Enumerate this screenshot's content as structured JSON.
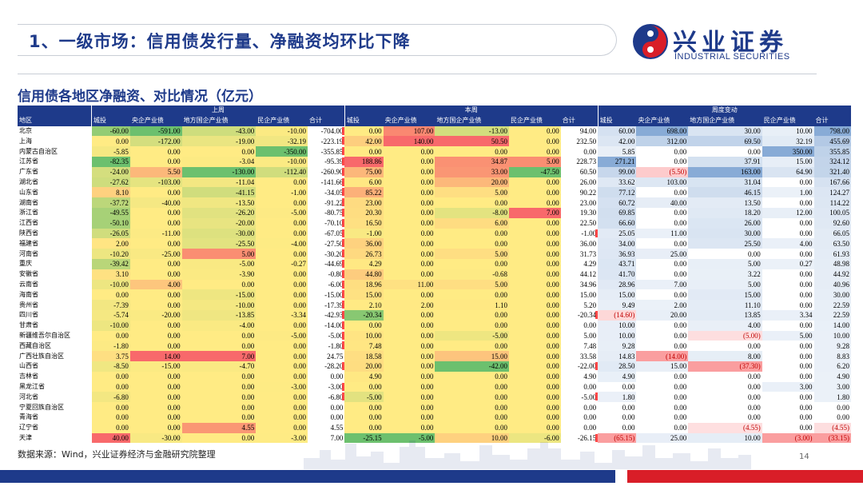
{
  "title": "1、一级市场：信用债发行量、净融资均环比下降",
  "logo": {
    "cn": "兴业证券",
    "en": "INDUSTRIAL SECURITIES"
  },
  "subtitle": "信用债各地区净融资、对比情况（亿元）",
  "groups": [
    "上周",
    "本周",
    "周度变动"
  ],
  "region_header": "地区",
  "columns": [
    "城投",
    "央企产业债",
    "地方国企产业债",
    "民企产业债",
    "合计"
  ],
  "rows": [
    {
      "region": "北京",
      "last": [
        "-60.00",
        "-591.00",
        "-43.00",
        "-10.00",
        "-704.00"
      ],
      "curr": [
        "0.00",
        "107.00",
        "-13.00",
        "0.00",
        "94.00"
      ],
      "chg": [
        "60.00",
        "698.00",
        "30.00",
        "10.00",
        "798.00"
      ]
    },
    {
      "region": "上海",
      "last": [
        "0.00",
        "-172.00",
        "-19.00",
        "-32.19",
        "-223.19"
      ],
      "curr": [
        "42.00",
        "140.00",
        "50.50",
        "0.00",
        "232.50"
      ],
      "chg": [
        "42.00",
        "312.00",
        "69.50",
        "32.19",
        "455.69"
      ]
    },
    {
      "region": "内蒙古自治区",
      "last": [
        "-5.85",
        "0.00",
        "0.00",
        "-350.00",
        "-355.85"
      ],
      "curr": [
        "0.00",
        "0.00",
        "0.00",
        "0.00",
        "0.00"
      ],
      "chg": [
        "5.85",
        "0.00",
        "0.00",
        "350.00",
        "355.85"
      ]
    },
    {
      "region": "江苏省",
      "last": [
        "-82.35",
        "0.00",
        "-3.04",
        "-10.00",
        "-95.39"
      ],
      "curr": [
        "188.86",
        "0.00",
        "34.87",
        "5.00",
        "228.73"
      ],
      "chg": [
        "271.21",
        "0.00",
        "37.91",
        "15.00",
        "324.12"
      ]
    },
    {
      "region": "广东省",
      "last": [
        "-24.00",
        "5.50",
        "-130.00",
        "-112.40",
        "-260.90"
      ],
      "curr": [
        "75.00",
        "0.00",
        "33.00",
        "-47.50",
        "60.50"
      ],
      "chg": [
        "99.00",
        "(5.50)",
        "163.00",
        "64.90",
        "321.40"
      ]
    },
    {
      "region": "湖北省",
      "last": [
        "-27.62",
        "-103.00",
        "-11.04",
        "0.00",
        "-141.66"
      ],
      "curr": [
        "6.00",
        "0.00",
        "20.00",
        "0.00",
        "26.00"
      ],
      "chg": [
        "33.62",
        "103.00",
        "31.04",
        "0.00",
        "167.66"
      ]
    },
    {
      "region": "山东省",
      "last": [
        "8.10",
        "0.00",
        "-41.15",
        "-1.00",
        "-34.05"
      ],
      "curr": [
        "85.22",
        "0.00",
        "5.00",
        "0.00",
        "90.22"
      ],
      "chg": [
        "77.12",
        "0.00",
        "46.15",
        "1.00",
        "124.27"
      ]
    },
    {
      "region": "湖南省",
      "last": [
        "-37.72",
        "-40.00",
        "-13.50",
        "0.00",
        "-91.22"
      ],
      "curr": [
        "23.00",
        "0.00",
        "0.00",
        "0.00",
        "23.00"
      ],
      "chg": [
        "60.72",
        "40.00",
        "13.50",
        "0.00",
        "114.22"
      ]
    },
    {
      "region": "浙江省",
      "last": [
        "-49.55",
        "0.00",
        "-26.20",
        "-5.00",
        "-80.75"
      ],
      "curr": [
        "20.30",
        "0.00",
        "-8.00",
        "7.00",
        "19.30"
      ],
      "chg": [
        "69.85",
        "0.00",
        "18.20",
        "12.00",
        "100.05"
      ]
    },
    {
      "region": "江西省",
      "last": [
        "-50.10",
        "0.00",
        "-20.00",
        "0.00",
        "-70.10"
      ],
      "curr": [
        "16.50",
        "0.00",
        "6.00",
        "0.00",
        "22.50"
      ],
      "chg": [
        "66.60",
        "0.00",
        "26.00",
        "0.00",
        "92.60"
      ]
    },
    {
      "region": "陕西省",
      "last": [
        "-26.05",
        "-11.00",
        "-30.00",
        "0.00",
        "-67.05"
      ],
      "curr": [
        "-1.00",
        "0.00",
        "0.00",
        "0.00",
        "-1.00"
      ],
      "chg": [
        "25.05",
        "11.00",
        "30.00",
        "0.00",
        "66.05"
      ]
    },
    {
      "region": "福建省",
      "last": [
        "2.00",
        "0.00",
        "-25.50",
        "-4.00",
        "-27.50"
      ],
      "curr": [
        "36.00",
        "0.00",
        "0.00",
        "0.00",
        "36.00"
      ],
      "chg": [
        "34.00",
        "0.00",
        "25.50",
        "4.00",
        "63.50"
      ]
    },
    {
      "region": "河南省",
      "last": [
        "-10.20",
        "-25.00",
        "5.00",
        "0.00",
        "-30.20"
      ],
      "curr": [
        "26.73",
        "0.00",
        "5.00",
        "0.00",
        "31.73"
      ],
      "chg": [
        "36.93",
        "25.00",
        "0.00",
        "0.00",
        "61.93"
      ]
    },
    {
      "region": "重庆",
      "last": [
        "-39.42",
        "0.00",
        "-5.00",
        "-0.27",
        "-44.69"
      ],
      "curr": [
        "4.29",
        "0.00",
        "0.00",
        "0.00",
        "4.29"
      ],
      "chg": [
        "43.71",
        "0.00",
        "5.00",
        "0.27",
        "48.98"
      ]
    },
    {
      "region": "安徽省",
      "last": [
        "3.10",
        "0.00",
        "-3.90",
        "0.00",
        "-0.80"
      ],
      "curr": [
        "44.80",
        "0.00",
        "-0.68",
        "0.00",
        "44.12"
      ],
      "chg": [
        "41.70",
        "0.00",
        "3.22",
        "0.00",
        "44.92"
      ]
    },
    {
      "region": "云南省",
      "last": [
        "-10.00",
        "4.00",
        "0.00",
        "0.00",
        "-6.00"
      ],
      "curr": [
        "18.96",
        "11.00",
        "5.00",
        "0.00",
        "34.96"
      ],
      "chg": [
        "28.96",
        "7.00",
        "5.00",
        "0.00",
        "40.96"
      ]
    },
    {
      "region": "海南省",
      "last": [
        "0.00",
        "0.00",
        "-15.00",
        "0.00",
        "-15.00"
      ],
      "curr": [
        "15.00",
        "0.00",
        "0.00",
        "0.00",
        "15.00"
      ],
      "chg": [
        "15.00",
        "0.00",
        "15.00",
        "0.00",
        "30.00"
      ]
    },
    {
      "region": "贵州省",
      "last": [
        "-7.39",
        "0.00",
        "-10.00",
        "0.00",
        "-17.39"
      ],
      "curr": [
        "2.10",
        "2.00",
        "1.10",
        "0.00",
        "5.20"
      ],
      "chg": [
        "9.49",
        "2.00",
        "11.10",
        "0.00",
        "22.59"
      ]
    },
    {
      "region": "四川省",
      "last": [
        "-5.74",
        "-20.00",
        "-13.85",
        "-3.34",
        "-42.93"
      ],
      "curr": [
        "-20.34",
        "0.00",
        "0.00",
        "0.00",
        "-20.34"
      ],
      "chg": [
        "(14.60)",
        "20.00",
        "13.85",
        "3.34",
        "22.59"
      ]
    },
    {
      "region": "甘肃省",
      "last": [
        "-10.00",
        "0.00",
        "-4.00",
        "0.00",
        "-14.00"
      ],
      "curr": [
        "0.00",
        "0.00",
        "0.00",
        "0.00",
        "0.00"
      ],
      "chg": [
        "10.00",
        "0.00",
        "4.00",
        "0.00",
        "14.00"
      ]
    },
    {
      "region": "新疆维吾尔自治区",
      "last": [
        "0.00",
        "0.00",
        "0.00",
        "-5.00",
        "-5.00"
      ],
      "curr": [
        "10.00",
        "0.00",
        "-5.00",
        "0.00",
        "5.00"
      ],
      "chg": [
        "10.00",
        "0.00",
        "(5.00)",
        "5.00",
        "10.00"
      ]
    },
    {
      "region": "西藏自治区",
      "last": [
        "-1.80",
        "0.00",
        "0.00",
        "0.00",
        "-1.80"
      ],
      "curr": [
        "7.48",
        "0.00",
        "0.00",
        "0.00",
        "7.48"
      ],
      "chg": [
        "9.28",
        "0.00",
        "0.00",
        "0.00",
        "9.28"
      ]
    },
    {
      "region": "广西壮族自治区",
      "last": [
        "3.75",
        "14.00",
        "7.00",
        "0.00",
        "24.75"
      ],
      "curr": [
        "18.58",
        "0.00",
        "15.00",
        "0.00",
        "33.58"
      ],
      "chg": [
        "14.83",
        "(14.00)",
        "8.00",
        "0.00",
        "8.83"
      ]
    },
    {
      "region": "山西省",
      "last": [
        "-8.50",
        "-15.00",
        "-4.70",
        "0.00",
        "-28.20"
      ],
      "curr": [
        "20.00",
        "0.00",
        "-42.00",
        "0.00",
        "-22.00"
      ],
      "chg": [
        "28.50",
        "15.00",
        "(37.30)",
        "0.00",
        "6.20"
      ]
    },
    {
      "region": "吉林省",
      "last": [
        "0.00",
        "0.00",
        "0.00",
        "0.00",
        "0.00"
      ],
      "curr": [
        "4.90",
        "0.00",
        "0.00",
        "0.00",
        "4.90"
      ],
      "chg": [
        "4.90",
        "0.00",
        "0.00",
        "0.00",
        "4.90"
      ]
    },
    {
      "region": "黑龙江省",
      "last": [
        "0.00",
        "0.00",
        "0.00",
        "-3.00",
        "-3.00"
      ],
      "curr": [
        "0.00",
        "0.00",
        "0.00",
        "0.00",
        "0.00"
      ],
      "chg": [
        "0.00",
        "0.00",
        "0.00",
        "3.00",
        "3.00"
      ]
    },
    {
      "region": "河北省",
      "last": [
        "-6.80",
        "0.00",
        "0.00",
        "0.00",
        "-6.80"
      ],
      "curr": [
        "-5.00",
        "0.00",
        "0.00",
        "0.00",
        "-5.00"
      ],
      "chg": [
        "1.80",
        "0.00",
        "0.00",
        "0.00",
        "1.80"
      ]
    },
    {
      "region": "宁夏回族自治区",
      "last": [
        "0.00",
        "0.00",
        "0.00",
        "0.00",
        "0.00"
      ],
      "curr": [
        "0.00",
        "0.00",
        "0.00",
        "0.00",
        "0.00"
      ],
      "chg": [
        "0.00",
        "0.00",
        "0.00",
        "0.00",
        "0.00"
      ]
    },
    {
      "region": "青海省",
      "last": [
        "0.00",
        "0.00",
        "0.00",
        "0.00",
        "0.00"
      ],
      "curr": [
        "0.00",
        "0.00",
        "0.00",
        "0.00",
        "0.00"
      ],
      "chg": [
        "0.00",
        "0.00",
        "0.00",
        "0.00",
        "0.00"
      ]
    },
    {
      "region": "辽宁省",
      "last": [
        "0.00",
        "0.00",
        "4.55",
        "0.00",
        "4.55"
      ],
      "curr": [
        "0.00",
        "0.00",
        "0.00",
        "0.00",
        "0.00"
      ],
      "chg": [
        "0.00",
        "0.00",
        "(4.55)",
        "0.00",
        "(4.55)"
      ]
    },
    {
      "region": "天津",
      "last": [
        "40.00",
        "-30.00",
        "0.00",
        "-3.00",
        "7.00"
      ],
      "curr": [
        "-25.15",
        "-5.00",
        "10.00",
        "-6.00",
        "-26.15"
      ],
      "chg": [
        "(65.15)",
        "25.00",
        "10.00",
        "(3.00)",
        "(33.15)"
      ]
    }
  ],
  "source": "数据来源：Wind，兴业证券经济与金融研究院整理",
  "page_number": "14",
  "colors": {
    "brand_blue": "#1e3a8a",
    "brand_red": "#d91e28",
    "scale_low": "#6cc06e",
    "scale_mid": "#ffeb84",
    "scale_high": "#f8696b",
    "scale_neg": "#f8696b",
    "scale_pos": "#5a8ac6"
  }
}
